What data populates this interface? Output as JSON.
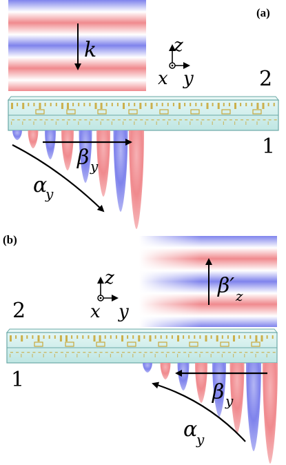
{
  "panels": [
    {
      "tag": "(a)",
      "wave_label": "k",
      "axis_labels": {
        "z": "z",
        "x": "x",
        "y": "y"
      },
      "region_top": "2",
      "region_bottom": "1",
      "beta_label": {
        "main": "β",
        "sub": "y"
      },
      "alpha_label": {
        "main": "α",
        "sub": "y"
      }
    },
    {
      "tag": "(b)",
      "wave_label": {
        "main": "β′",
        "sub": "z"
      },
      "axis_labels": {
        "z": "z",
        "x": "x",
        "y": "y"
      },
      "region_top": "2",
      "region_bottom": "1",
      "beta_label": {
        "main": "β",
        "sub": "y"
      },
      "alpha_label": {
        "main": "α",
        "sub": "y"
      }
    }
  ],
  "colors": {
    "red": "#f08a8e",
    "blue": "#7f83ec",
    "slab_fill": "#c9ecea",
    "slab_edge": "#6aa8a6",
    "metal": "#c9a83a"
  }
}
